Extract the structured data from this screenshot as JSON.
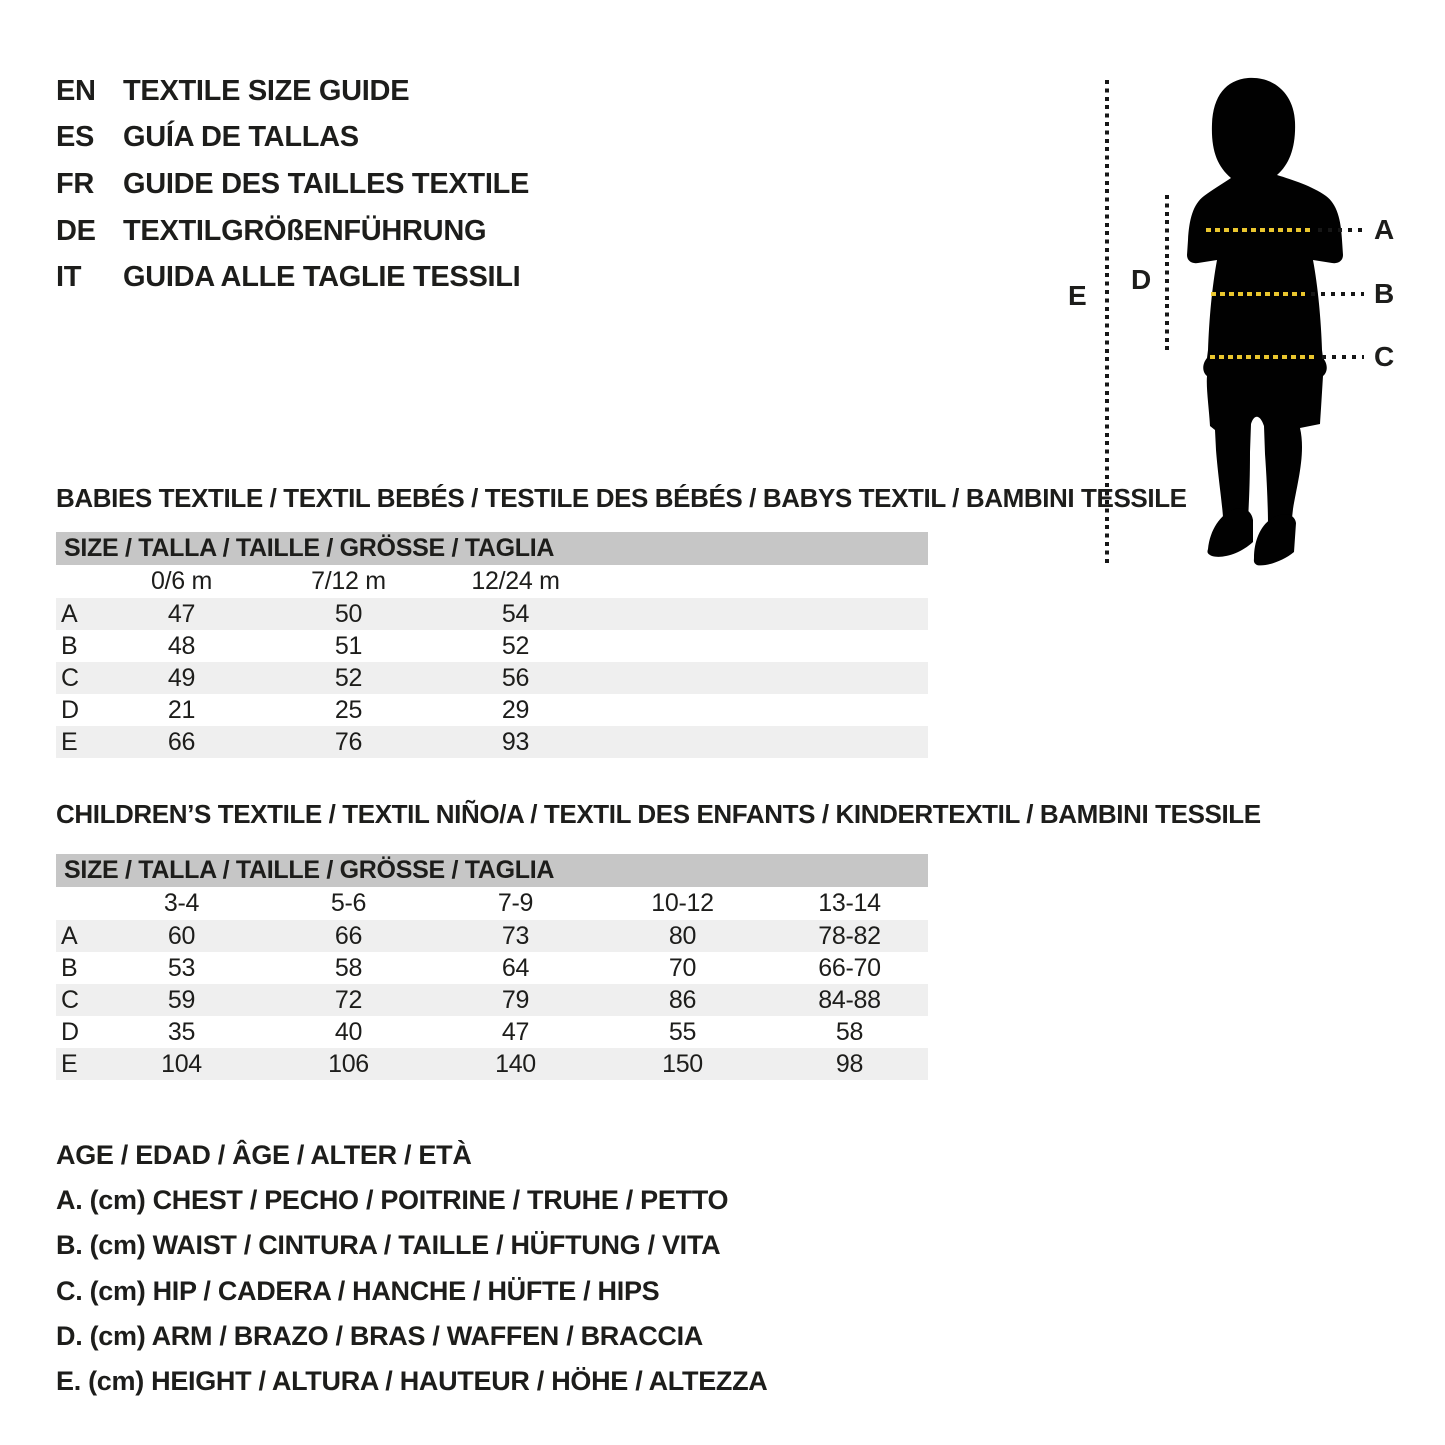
{
  "colors": {
    "text": "#1d1d1b",
    "accent_yellow": "#eac62e",
    "header_bar_gray": "#c6c6c6",
    "row_band_gray": "#efefef",
    "silhouette_black": "#010101"
  },
  "header": {
    "languages": [
      {
        "code": "EN",
        "title": "TEXTILE SIZE GUIDE"
      },
      {
        "code": "ES",
        "title": "GUÍA DE TALLAS"
      },
      {
        "code": "FR",
        "title": "GUIDE DES TAILLES TEXTILE"
      },
      {
        "code": "DE",
        "title": "TEXTILGRÖßENFÜHRUNG"
      },
      {
        "code": "IT",
        "title": "GUIDA ALLE TAGLIE TESSILI"
      }
    ]
  },
  "figure": {
    "labels": {
      "A": "A",
      "B": "B",
      "C": "C",
      "D": "D",
      "E": "E"
    }
  },
  "babies_table": {
    "section_title": "BABIES TEXTILE / TEXTIL BEBÉS / TESTILE DES BÉBÉS / BABYS TEXTIL / BAMBINI TESSILE",
    "size_header": "SIZE / TALLA / TAILLE / GRÖSSE / TAGLIA",
    "columns": [
      "0/6 m",
      "7/12 m",
      "12/24 m"
    ],
    "rows": [
      {
        "label": "A",
        "values": [
          "47",
          "50",
          "54"
        ]
      },
      {
        "label": "B",
        "values": [
          "48",
          "51",
          "52"
        ]
      },
      {
        "label": "C",
        "values": [
          "49",
          "52",
          "56"
        ]
      },
      {
        "label": "D",
        "values": [
          "21",
          "25",
          "29"
        ]
      },
      {
        "label": "E",
        "values": [
          "66",
          "76",
          "93"
        ]
      }
    ]
  },
  "children_table": {
    "section_title": "CHILDREN’S TEXTILE / TEXTIL NIÑO/A / TEXTIL DES ENFANTS / KINDERTEXTIL / BAMBINI TESSILE",
    "size_header": "SIZE / TALLA / TAILLE / GRÖSSE / TAGLIA",
    "columns": [
      "3-4",
      "5-6",
      "7-9",
      "10-12",
      "13-14"
    ],
    "rows": [
      {
        "label": "A",
        "values": [
          "60",
          "66",
          "73",
          "80",
          "78-82"
        ]
      },
      {
        "label": "B",
        "values": [
          "53",
          "58",
          "64",
          "70",
          "66-70"
        ]
      },
      {
        "label": "C",
        "values": [
          "59",
          "72",
          "79",
          "86",
          "84-88"
        ]
      },
      {
        "label": "D",
        "values": [
          "35",
          "40",
          "47",
          "55",
          "58"
        ]
      },
      {
        "label": "E",
        "values": [
          "104",
          "106",
          "140",
          "150",
          "98"
        ]
      }
    ]
  },
  "legend": {
    "lines": [
      "AGE / EDAD / ÂGE / ALTER / ETÀ",
      "A. (cm) CHEST / PECHO / POITRINE / TRUHE / PETTO",
      "B. (cm) WAIST / CINTURA / TAILLE / HÜFTUNG / VITA",
      "C. (cm) HIP / CADERA / HANCHE / HÜFTE / HIPS",
      "D. (cm) ARM / BRAZO / BRAS / WAFFEN / BRACCIA",
      "E. (cm) HEIGHT / ALTURA / HAUTEUR / HÖHE / ALTEZZA"
    ]
  }
}
